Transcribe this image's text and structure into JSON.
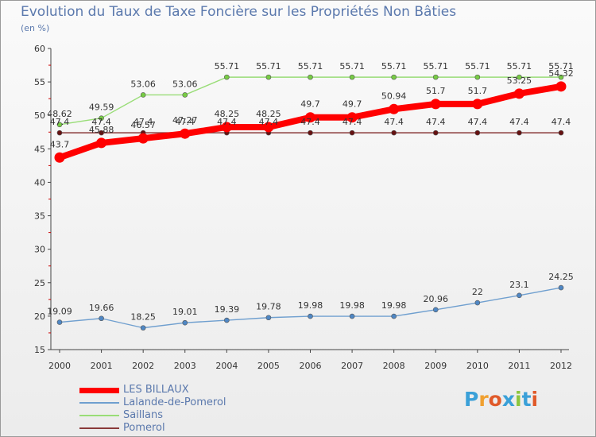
{
  "title": "Evolution du Taux de Taxe Foncière sur les Propriétés Non Bâties",
  "unit_label": "(en %)",
  "logo_text": "Proxiti",
  "chart_data": {
    "type": "line",
    "title": "Evolution du Taux de Taxe Foncière sur les Propriétés Non Bâties",
    "ylabel": "(en %)",
    "xlabel": "",
    "ylim": [
      15,
      60
    ],
    "yticks": [
      15,
      20,
      25,
      30,
      35,
      40,
      45,
      50,
      55,
      60
    ],
    "grid": false,
    "legend_position": "bottom-left",
    "categories": [
      "2000",
      "2001",
      "2002",
      "2003",
      "2004",
      "2005",
      "2006",
      "2007",
      "2008",
      "2009",
      "2010",
      "2011",
      "2012"
    ],
    "series": [
      {
        "name": "LES BILLAUX",
        "color": "#ff0000",
        "marker_color": "#ff0000",
        "values": [
          43.7,
          45.88,
          46.57,
          47.27,
          48.25,
          48.25,
          49.7,
          49.7,
          50.94,
          51.7,
          51.7,
          53.25,
          54.32
        ],
        "labels": [
          "43.7",
          "45.88",
          "46.57",
          "47.27",
          "48.25",
          "48.25",
          "49.7",
          "49.7",
          "50.94",
          "51.7",
          "51.7",
          "53.25",
          "54.32"
        ]
      },
      {
        "name": "Lalande-de-Pomerol",
        "color": "#6f9fcf",
        "marker_color": "#4f87c4",
        "values": [
          19.09,
          19.66,
          18.25,
          19.01,
          19.39,
          19.78,
          19.98,
          19.98,
          19.98,
          20.96,
          22,
          23.1,
          24.25
        ],
        "labels": [
          "19.09",
          "19.66",
          "18.25",
          "19.01",
          "19.39",
          "19.78",
          "19.98",
          "19.98",
          "19.98",
          "20.96",
          "22",
          "23.1",
          "24.25"
        ]
      },
      {
        "name": "Saillans",
        "color": "#99dd77",
        "marker_color": "#77cc44",
        "values": [
          48.62,
          49.59,
          53.06,
          53.06,
          55.71,
          55.71,
          55.71,
          55.71,
          55.71,
          55.71,
          55.71,
          55.71,
          55.71
        ],
        "labels": [
          "48.62",
          "49.59",
          "53.06",
          "53.06",
          "55.71",
          "55.71",
          "55.71",
          "55.71",
          "55.71",
          "55.71",
          "55.71",
          "55.71",
          "55.71"
        ]
      },
      {
        "name": "Pomerol",
        "color": "#8a3a3a",
        "marker_color": "#661111",
        "values": [
          47.4,
          47.4,
          47.4,
          47.4,
          47.4,
          47.4,
          47.4,
          47.4,
          47.4,
          47.4,
          47.4,
          47.4,
          47.4
        ],
        "labels": [
          "47.4",
          "47.4",
          "47.4",
          "47.4",
          "47.4",
          "47.4",
          "47.4",
          "47.4",
          "47.4",
          "47.4",
          "47.4",
          "47.4",
          "47.4"
        ]
      }
    ]
  }
}
